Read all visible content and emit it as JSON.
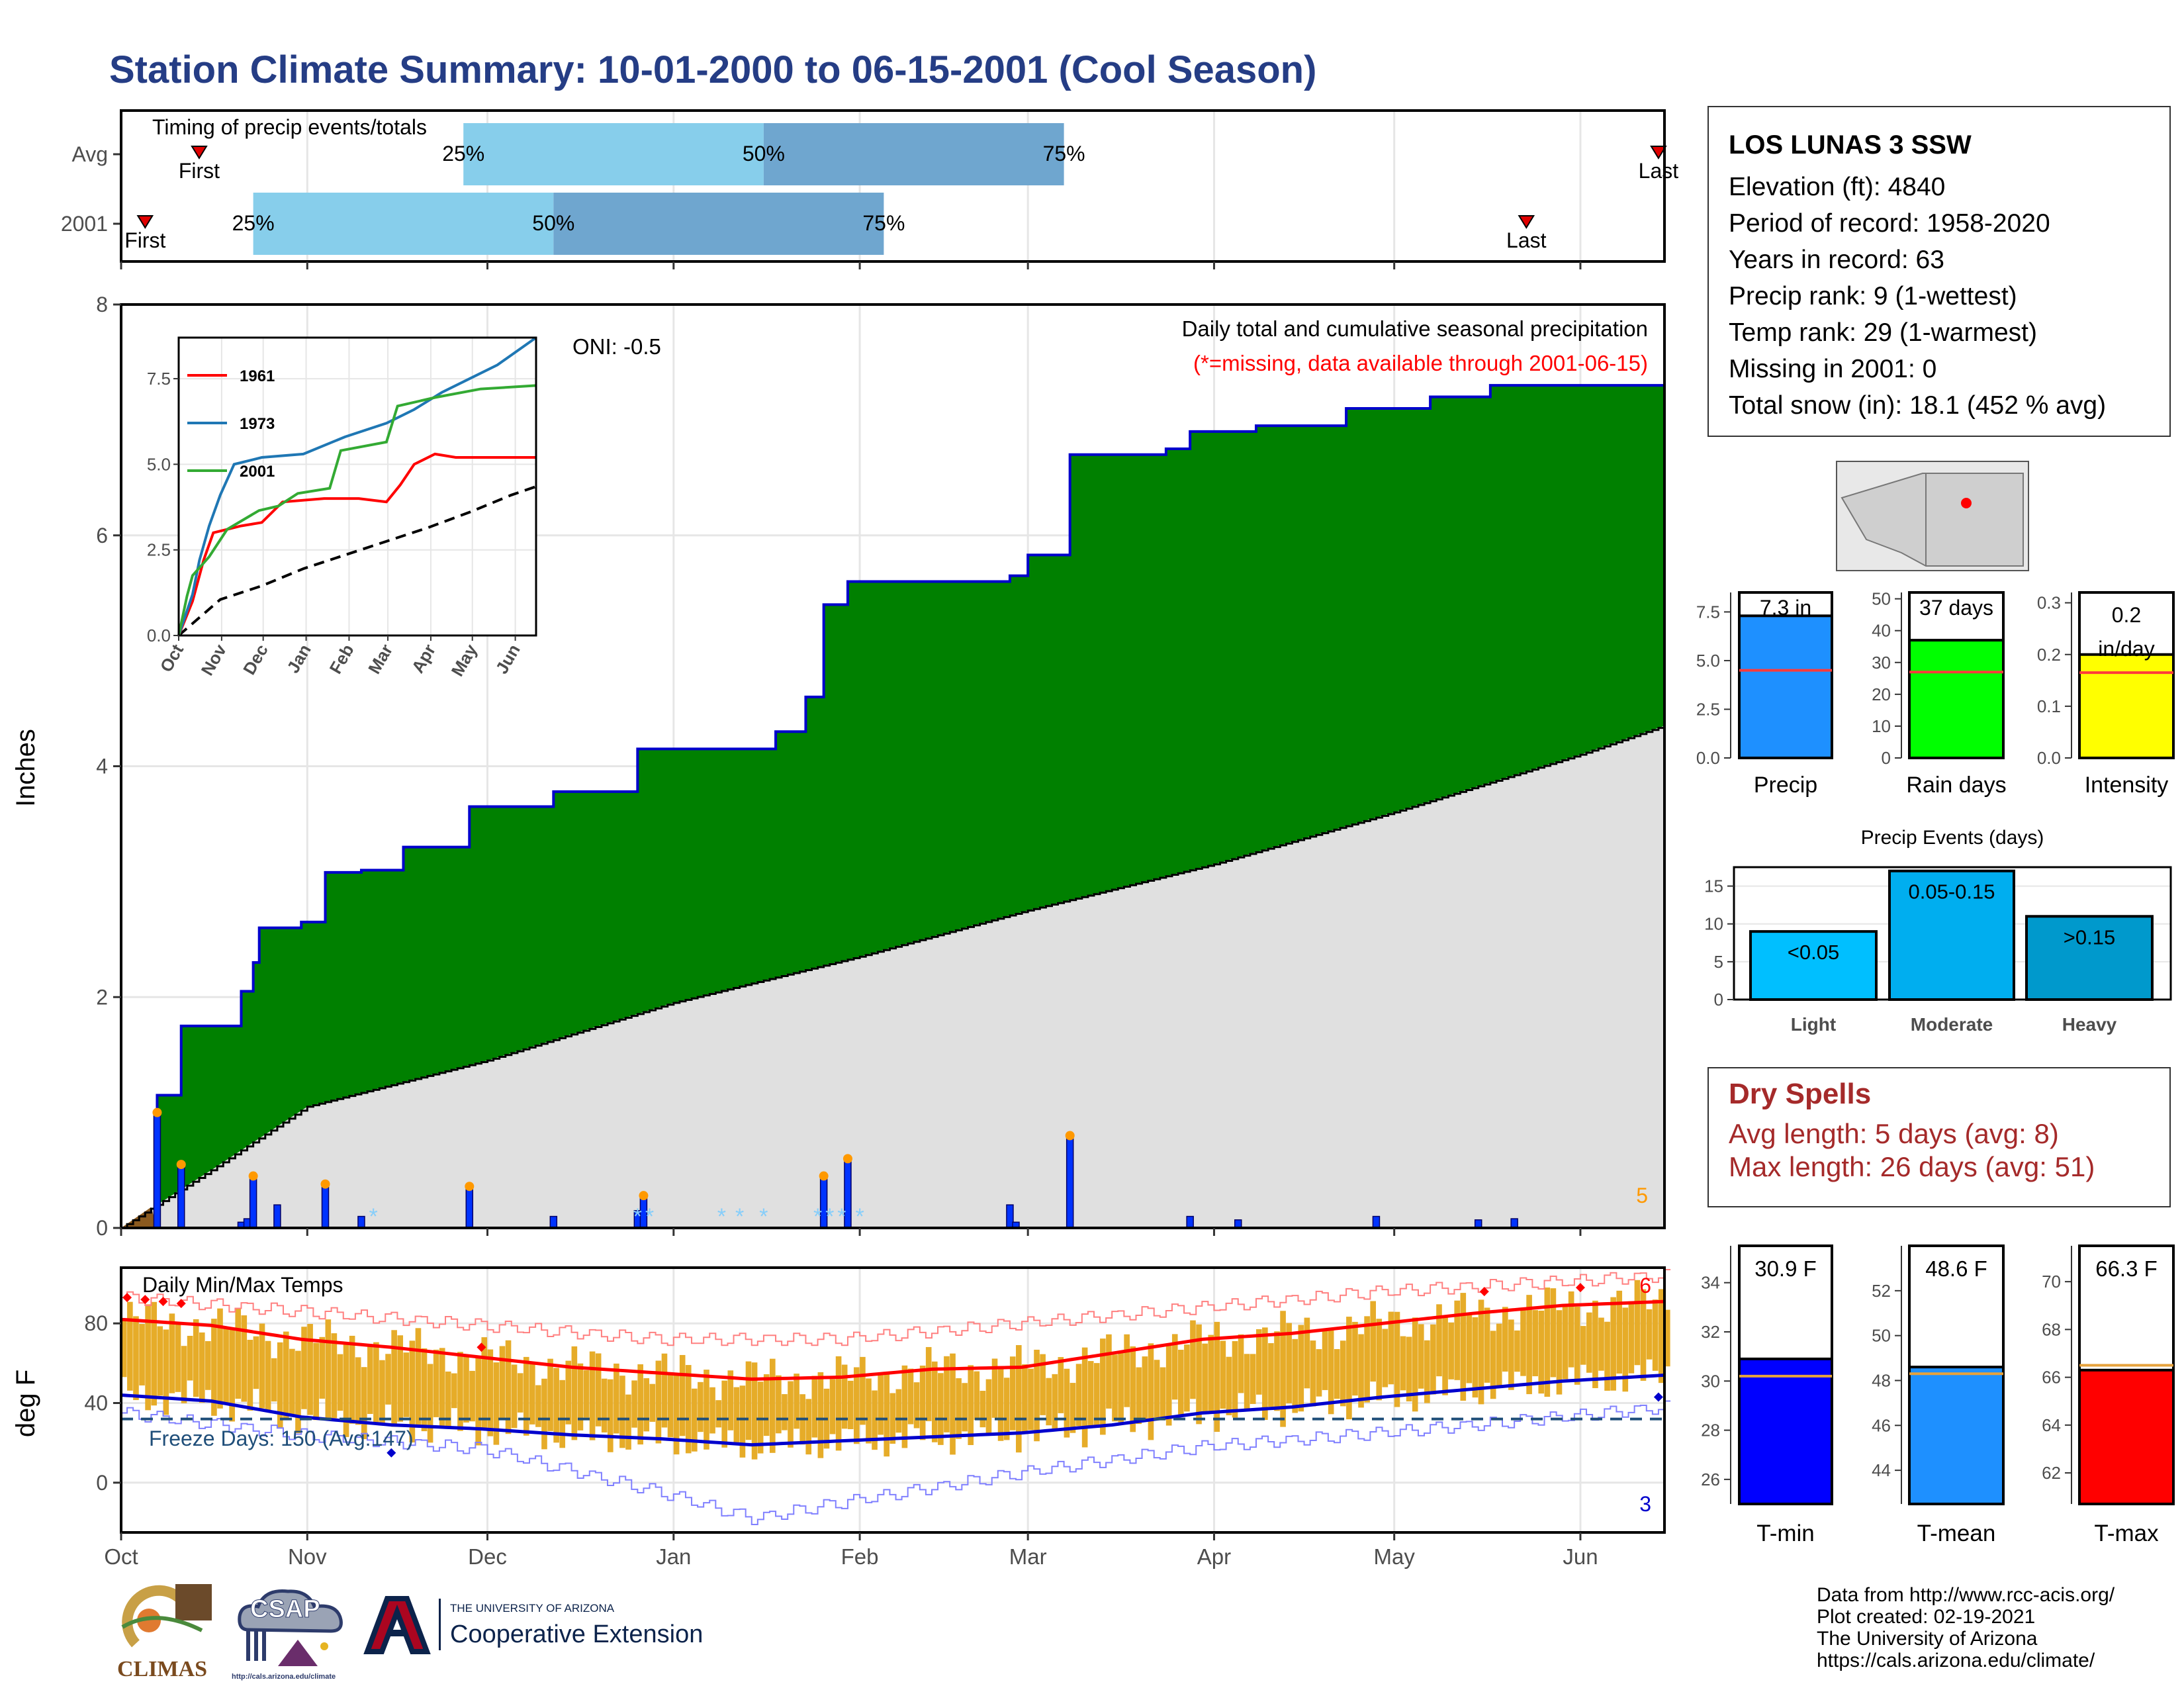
{
  "title": "Station Climate Summary: 10-01-2000 to 06-15-2001 (Cool Season)",
  "station": {
    "name": "LOS LUNAS 3 SSW",
    "lines": [
      "Elevation (ft): 4840",
      "Period of record: 1958-2020",
      "Years in record: 63",
      "Precip rank: 9 (1-wettest)",
      "Temp rank: 29 (1-warmest)",
      "Missing in 2001: 0",
      "Total snow (in): 18.1 (452 % avg)"
    ]
  },
  "dry_spells": {
    "title": "Dry Spells",
    "avg": "Avg length: 5 days (avg: 8)",
    "max": "Max length: 26 days (avg: 51)"
  },
  "credits": [
    "Data from http://www.rcc-acis.org/",
    "Plot created: 02-19-2021",
    "The University of Arizona",
    "https://cals.arizona.edu/climate/"
  ],
  "logos": {
    "climas": "CLIMAS",
    "csap": "CSAP",
    "csap_url": "http://cals.arizona.edu/climate",
    "ua_line1": "THE UNIVERSITY OF ARIZONA",
    "ua_line2": "Cooperative Extension"
  },
  "colors": {
    "title": "#253d85",
    "cum_fill": "#008000",
    "cum_line": "#0000cc",
    "avg_fill": "#e0e0e0",
    "bar_light": "#87ceeb",
    "bar_dark": "#6fa6cf",
    "temp_bar": "#e6ac29",
    "tmax_line": "#ff0000",
    "tmin_line": "#0000cc"
  },
  "chart_data": [
    {
      "type": "bar",
      "name": "timing",
      "title": "Timing of precip events/totals",
      "categories": [
        "Avg",
        "2001"
      ],
      "quartile_labels": [
        "25%",
        "50%",
        "75%"
      ],
      "first_label": "First",
      "last_label": "Last",
      "avg": {
        "first": "2000-10-14",
        "q25": "2000-11-27",
        "q50": "2001-01-16",
        "q75": "2001-03-07",
        "last": "2001-06-14"
      },
      "y2001": {
        "first": "2000-10-05",
        "q25": "2000-10-23",
        "q50": "2000-12-12",
        "q75": "2001-02-05",
        "last": "2001-05-23"
      }
    },
    {
      "type": "area",
      "name": "precip",
      "title": "Daily total and cumulative seasonal precipitation",
      "subtitle": "(*=missing, data available through 2001-06-15)",
      "annotation": "ONI: -0.5",
      "ylabel": "Inches",
      "ylim": [
        0,
        8
      ],
      "yticks": [
        0,
        2,
        4,
        6,
        8
      ],
      "x_months": [
        "Oct",
        "Nov",
        "Dec",
        "Jan",
        "Feb",
        "Mar",
        "Apr",
        "May",
        "Jun"
      ],
      "corner_count": "5",
      "cumulative_2001": [
        [
          "2000-10-01",
          0
        ],
        [
          "2000-10-07",
          1.15
        ],
        [
          "2000-10-11",
          1.75
        ],
        [
          "2000-10-21",
          2.05
        ],
        [
          "2000-10-23",
          2.3
        ],
        [
          "2000-10-24",
          2.6
        ],
        [
          "2000-10-31",
          2.65
        ],
        [
          "2000-11-04",
          3.08
        ],
        [
          "2000-11-10",
          3.1
        ],
        [
          "2000-11-17",
          3.3
        ],
        [
          "2000-11-28",
          3.65
        ],
        [
          "2000-12-12",
          3.78
        ],
        [
          "2000-12-26",
          4.15
        ],
        [
          "2001-01-18",
          4.3
        ],
        [
          "2001-01-23",
          4.6
        ],
        [
          "2001-01-26",
          5.4
        ],
        [
          "2001-01-30",
          5.6
        ],
        [
          "2001-02-26",
          5.65
        ],
        [
          "2001-03-01",
          5.83
        ],
        [
          "2001-03-08",
          6.7
        ],
        [
          "2001-03-24",
          6.75
        ],
        [
          "2001-03-28",
          6.9
        ],
        [
          "2001-04-08",
          6.95
        ],
        [
          "2001-04-23",
          7.1
        ],
        [
          "2001-05-07",
          7.2
        ],
        [
          "2001-05-17",
          7.3
        ],
        [
          "2001-06-15",
          7.3
        ]
      ],
      "average_cumulative": [
        [
          "2000-10-01",
          0
        ],
        [
          "2000-10-16",
          0.5
        ],
        [
          "2000-11-01",
          1.05
        ],
        [
          "2000-12-01",
          1.45
        ],
        [
          "2001-01-01",
          1.95
        ],
        [
          "2001-02-01",
          2.35
        ],
        [
          "2001-03-01",
          2.75
        ],
        [
          "2001-04-01",
          3.15
        ],
        [
          "2001-05-01",
          3.6
        ],
        [
          "2001-06-01",
          4.1
        ],
        [
          "2001-06-15",
          4.35
        ]
      ],
      "daily_2001": [
        [
          "2000-10-07",
          1.0
        ],
        [
          "2000-10-11",
          0.55
        ],
        [
          "2000-10-21",
          0.05
        ],
        [
          "2000-10-22",
          0.08
        ],
        [
          "2000-10-23",
          0.45
        ],
        [
          "2000-10-27",
          0.2
        ],
        [
          "2000-11-04",
          0.38
        ],
        [
          "2000-11-10",
          0.1
        ],
        [
          "2000-11-28",
          0.36
        ],
        [
          "2000-12-12",
          0.1
        ],
        [
          "2000-12-26",
          0.15
        ],
        [
          "2000-12-27",
          0.28
        ],
        [
          "2001-01-26",
          0.45
        ],
        [
          "2001-01-30",
          0.6
        ],
        [
          "2001-02-26",
          0.2
        ],
        [
          "2001-02-27",
          0.05
        ],
        [
          "2001-03-08",
          0.8
        ],
        [
          "2001-03-28",
          0.1
        ],
        [
          "2001-04-05",
          0.07
        ],
        [
          "2001-04-28",
          0.1
        ],
        [
          "2001-05-15",
          0.07
        ],
        [
          "2001-05-21",
          0.08
        ]
      ],
      "snow_days": [
        "2000-11-12",
        "2000-12-26",
        "2000-12-28",
        "2001-01-09",
        "2001-01-12",
        "2001-01-16",
        "2001-01-25",
        "2001-01-27",
        "2001-01-29",
        "2001-02-01"
      ]
    },
    {
      "type": "line",
      "name": "inset",
      "xticks": [
        "Oct",
        "Nov",
        "Dec",
        "Jan",
        "Feb",
        "Mar",
        "Apr",
        "May",
        "Jun"
      ],
      "yticks": [
        0.0,
        2.5,
        5.0,
        7.5
      ],
      "ylim": [
        0,
        8.7
      ],
      "series": [
        {
          "name": "1961",
          "color": "#ff0000",
          "points": [
            [
              0,
              0
            ],
            [
              10,
              1.0
            ],
            [
              18,
              2.2
            ],
            [
              25,
              3.0
            ],
            [
              35,
              3.1
            ],
            [
              45,
              3.2
            ],
            [
              60,
              3.3
            ],
            [
              75,
              3.9
            ],
            [
              105,
              4.0
            ],
            [
              130,
              4.0
            ],
            [
              150,
              3.9
            ],
            [
              160,
              4.4
            ],
            [
              170,
              5.0
            ],
            [
              185,
              5.3
            ],
            [
              200,
              5.2
            ],
            [
              258,
              5.2
            ]
          ]
        },
        {
          "name": "1973",
          "color": "#1f77b4",
          "points": [
            [
              0,
              0
            ],
            [
              10,
              1.2
            ],
            [
              15,
              2.2
            ],
            [
              22,
              3.2
            ],
            [
              30,
              4.1
            ],
            [
              40,
              5.0
            ],
            [
              60,
              5.2
            ],
            [
              90,
              5.3
            ],
            [
              120,
              5.8
            ],
            [
              150,
              6.2
            ],
            [
              170,
              6.6
            ],
            [
              190,
              7.1
            ],
            [
              210,
              7.5
            ],
            [
              230,
              7.9
            ],
            [
              258,
              8.7
            ]
          ]
        },
        {
          "name": "2001",
          "color": "#33aa33",
          "points": [
            [
              0,
              0
            ],
            [
              6,
              1.15
            ],
            [
              10,
              1.75
            ],
            [
              22,
              2.3
            ],
            [
              35,
              3.1
            ],
            [
              58,
              3.65
            ],
            [
              72,
              3.78
            ],
            [
              86,
              4.15
            ],
            [
              109,
              4.3
            ],
            [
              117,
              5.4
            ],
            [
              150,
              5.65
            ],
            [
              158,
              6.7
            ],
            [
              185,
              6.95
            ],
            [
              218,
              7.2
            ],
            [
              258,
              7.3
            ]
          ]
        }
      ],
      "average": [
        [
          0,
          0
        ],
        [
          30,
          1.05
        ],
        [
          60,
          1.45
        ],
        [
          90,
          1.95
        ],
        [
          120,
          2.35
        ],
        [
          150,
          2.75
        ],
        [
          180,
          3.15
        ],
        [
          210,
          3.6
        ],
        [
          240,
          4.1
        ],
        [
          258,
          4.35
        ]
      ]
    },
    {
      "type": "bar",
      "name": "totals",
      "panels": [
        {
          "label": "Precip",
          "value": 7.3,
          "avg": 4.5,
          "text": "7.3 in",
          "ylim": [
            0,
            8.5
          ],
          "yticks": [
            "0.0",
            "2.5",
            "5.0",
            "7.5"
          ],
          "ytick_values": [
            0,
            2.5,
            5,
            7.5
          ],
          "color": "#1e90ff"
        },
        {
          "label": "Rain days",
          "value": 37,
          "avg": 27,
          "text": "37 days",
          "ylim": [
            0,
            52
          ],
          "yticks": [
            "0",
            "10",
            "20",
            "30",
            "40",
            "50"
          ],
          "ytick_values": [
            0,
            10,
            20,
            30,
            40,
            50
          ],
          "color": "#00ff00"
        },
        {
          "label": "Intensity",
          "value": 0.2,
          "avg": 0.165,
          "text": "0.2 in/day",
          "ylim": [
            0,
            0.32
          ],
          "yticks": [
            "0.0",
            "0.1",
            "0.2",
            "0.3"
          ],
          "ytick_values": [
            0,
            0.1,
            0.2,
            0.3
          ],
          "color": "#ffff00"
        }
      ]
    },
    {
      "type": "bar",
      "name": "events",
      "title": "Precip Events (days)",
      "categories": [
        "Light",
        "Moderate",
        "Heavy"
      ],
      "bar_labels": [
        "<0.05",
        "0.05-0.15",
        ">0.15"
      ],
      "values": [
        9,
        17,
        11
      ],
      "ylim": [
        0,
        17.5
      ],
      "yticks": [
        0,
        5,
        10,
        15
      ],
      "colors": [
        "#00bfff",
        "#00aeef",
        "#0099cc"
      ]
    },
    {
      "type": "bar",
      "name": "temps",
      "title": "Daily Min/Max Temps",
      "ylabel": "deg F",
      "ylim": [
        -25,
        108
      ],
      "yticks": [
        0,
        40,
        80
      ],
      "freeze_line": 32,
      "freeze_text": "Freeze Days: 150 (Avg:147)",
      "count_high": "6",
      "count_low": "3",
      "tmax_smooth": [
        [
          0,
          82
        ],
        [
          15,
          79
        ],
        [
          30,
          72
        ],
        [
          45,
          68
        ],
        [
          60,
          63
        ],
        [
          75,
          58
        ],
        [
          90,
          55
        ],
        [
          105,
          52
        ],
        [
          120,
          53
        ],
        [
          135,
          57
        ],
        [
          150,
          58
        ],
        [
          165,
          65
        ],
        [
          180,
          72
        ],
        [
          195,
          75
        ],
        [
          210,
          80
        ],
        [
          225,
          85
        ],
        [
          240,
          89
        ],
        [
          257,
          91
        ]
      ],
      "tmin_smooth": [
        [
          0,
          44
        ],
        [
          15,
          41
        ],
        [
          30,
          33
        ],
        [
          45,
          29
        ],
        [
          60,
          27
        ],
        [
          75,
          24
        ],
        [
          90,
          22
        ],
        [
          105,
          19
        ],
        [
          120,
          21
        ],
        [
          135,
          23
        ],
        [
          150,
          25
        ],
        [
          165,
          29
        ],
        [
          180,
          35
        ],
        [
          195,
          38
        ],
        [
          210,
          43
        ],
        [
          225,
          47
        ],
        [
          240,
          51
        ],
        [
          257,
          54
        ]
      ],
      "tmax_env": [
        [
          0,
          93
        ],
        [
          30,
          86
        ],
        [
          60,
          79
        ],
        [
          90,
          72
        ],
        [
          120,
          72
        ],
        [
          150,
          80
        ],
        [
          180,
          88
        ],
        [
          210,
          96
        ],
        [
          240,
          101
        ],
        [
          257,
          104
        ]
      ],
      "tmin_env": [
        [
          0,
          35
        ],
        [
          30,
          24
        ],
        [
          60,
          17
        ],
        [
          90,
          -5
        ],
        [
          105,
          -18
        ],
        [
          120,
          -10
        ],
        [
          150,
          5
        ],
        [
          180,
          18
        ],
        [
          210,
          25
        ],
        [
          240,
          33
        ],
        [
          257,
          38
        ]
      ]
    },
    {
      "type": "bar",
      "name": "tsum",
      "panels": [
        {
          "label": "T-min",
          "value": 30.9,
          "avg": 30.2,
          "text": "30.9 F",
          "ylim": [
            25,
            35.5
          ],
          "yticks": [
            26,
            28,
            30,
            32,
            34
          ],
          "color": "#0000ff"
        },
        {
          "label": "T-mean",
          "value": 48.6,
          "avg": 48.3,
          "text": "48.6 F",
          "ylim": [
            42.5,
            54
          ],
          "yticks": [
            44,
            46,
            48,
            50,
            52
          ],
          "color": "#1e90ff"
        },
        {
          "label": "T-max",
          "value": 66.3,
          "avg": 66.5,
          "text": "66.3 F",
          "ylim": [
            60.7,
            71.5
          ],
          "yticks": [
            62,
            64,
            66,
            68,
            70
          ],
          "color": "#ff0000"
        }
      ]
    }
  ]
}
